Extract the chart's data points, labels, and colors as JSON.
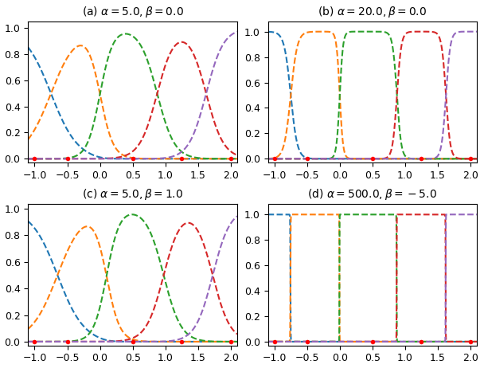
{
  "panels": [
    {
      "title": "(a) $\\alpha = 5.0, \\beta = 0.0$",
      "alpha": 5.0,
      "beta": 0.0
    },
    {
      "title": "(b) $\\alpha = 20.0, \\beta = 0.0$",
      "alpha": 20.0,
      "beta": 0.0
    },
    {
      "title": "(c) $\\alpha = 5.0, \\beta = 1.0$",
      "alpha": 5.0,
      "beta": 1.0
    },
    {
      "title": "(d) $\\alpha = 500.0, \\beta = -5.0$",
      "alpha": 500.0,
      "beta": -5.0
    }
  ],
  "centers": [
    -1.0,
    -0.5,
    0.5,
    1.25,
    2.0
  ],
  "colors": [
    "#1f77b4",
    "#ff7f0e",
    "#2ca02c",
    "#d62728",
    "#9467bd"
  ],
  "x_lim": [
    -1.1,
    2.1
  ],
  "x_ticks": [
    -1.0,
    -0.5,
    0.0,
    0.5,
    1.0,
    1.5,
    2.0
  ],
  "dot_color": "red",
  "dot_marker_size": 4,
  "title_fontsize": 10,
  "tick_fontsize": 9
}
